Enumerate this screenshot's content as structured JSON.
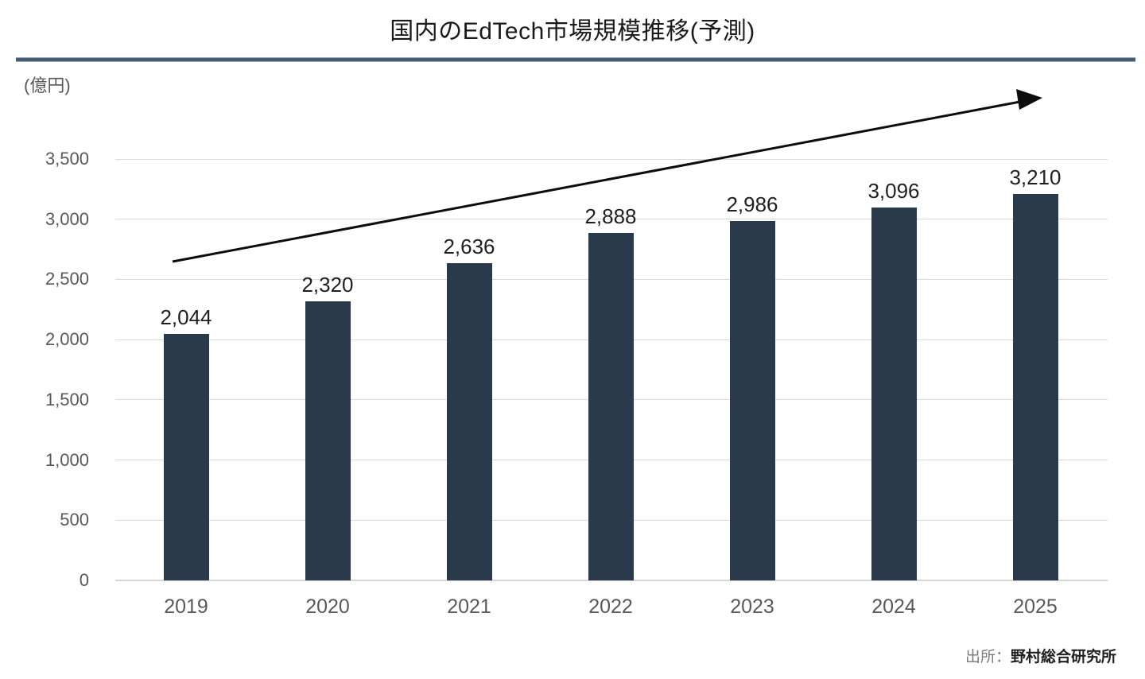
{
  "chart_data": {
    "type": "bar",
    "title": "国内のEdTech市場規模推移(予測)",
    "unit_label": "(億円)",
    "categories": [
      "2019",
      "2020",
      "2021",
      "2022",
      "2023",
      "2024",
      "2025"
    ],
    "values": [
      2044,
      2320,
      2636,
      2888,
      2986,
      3096,
      3210
    ],
    "value_labels": [
      "2,044",
      "2,320",
      "2,636",
      "2,888",
      "2,986",
      "3,096",
      "3,210"
    ],
    "y_ticks": [
      0,
      500,
      1000,
      1500,
      2000,
      2500,
      3000,
      3500
    ],
    "y_tick_labels": [
      "0",
      "500",
      "1,000",
      "1,500",
      "2,000",
      "2,500",
      "3,000",
      "3,500"
    ],
    "ylim": [
      0,
      3500
    ],
    "xlabel": "",
    "ylabel": "(億円)",
    "grid": true,
    "legend": "none",
    "bar_color": "#2a3a4b",
    "annotation": "upward trend arrow from lower-left to upper-right"
  },
  "source": {
    "prefix": "出所：",
    "name": "野村総合研究所"
  },
  "colors": {
    "bar": "#2a3a4b",
    "gridline": "#d9d9d9",
    "divider": "#4a5c70",
    "axis_text": "#595959",
    "value_text": "#1f1f1f",
    "arrow": "#0d0d0d"
  }
}
